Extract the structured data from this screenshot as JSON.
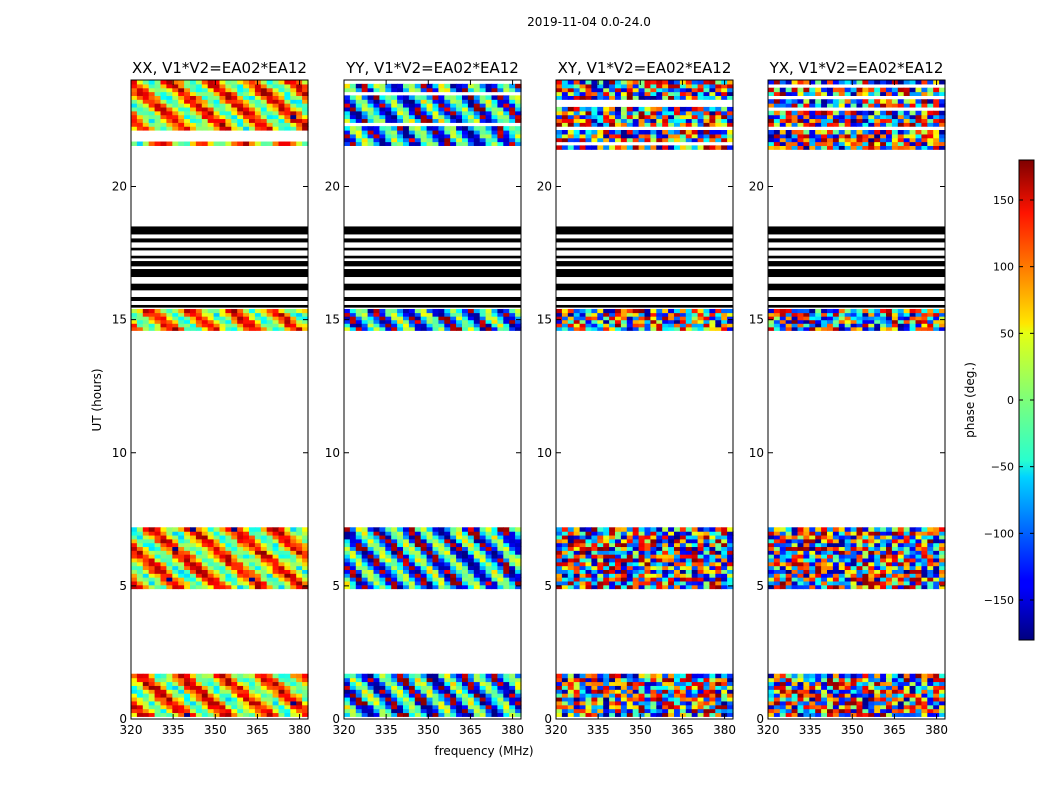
{
  "figure": {
    "suptitle": "2019-11-04 0.0-24.0",
    "ylabel": "UT (hours)",
    "xlabel": "frequency (MHz)"
  },
  "colorbar": {
    "label": "phase (deg.)",
    "range": [
      -180,
      180
    ],
    "ticks": [
      150,
      100,
      50,
      0,
      -50,
      -100,
      -150
    ],
    "tick_labels": [
      "150",
      "100",
      "50",
      "0",
      "−50",
      "−100",
      "−150"
    ],
    "colormap": "jet"
  },
  "chart_data": {
    "type": "heatmap",
    "x_range": [
      320,
      383
    ],
    "y_range": [
      0,
      24
    ],
    "x_ticks": [
      320,
      335,
      350,
      365,
      380
    ],
    "x_tick_labels": [
      "320",
      "335",
      "350",
      "365",
      "380"
    ],
    "y_ticks": [
      0,
      5,
      10,
      15,
      20
    ],
    "y_tick_labels": [
      "0",
      "5",
      "10",
      "15",
      "20"
    ],
    "data_blocks_ut": [
      [
        0.1,
        1.7
      ],
      [
        4.9,
        7.2
      ],
      [
        14.6,
        15.4
      ],
      [
        21.4,
        24.0
      ]
    ],
    "flagged_bands_ut": [
      [
        18.2,
        18.5
      ],
      [
        17.9,
        18.05
      ],
      [
        17.6,
        17.7
      ],
      [
        17.3,
        17.4
      ],
      [
        17.0,
        17.2
      ],
      [
        16.6,
        16.9
      ],
      [
        16.1,
        16.35
      ],
      [
        15.7,
        15.85
      ],
      [
        15.45,
        15.55
      ]
    ],
    "panels": [
      {
        "title": "XX, V1*V2=EA02*EA12",
        "mean_phase_deg": 60,
        "spread": 0.5,
        "noise": 0.2
      },
      {
        "title": "YY, V1*V2=EA02*EA12",
        "mean_phase_deg": -80,
        "spread": 0.6,
        "noise": 0.2
      },
      {
        "title": "XY, V1*V2=EA02*EA12",
        "mean_phase_deg": 0,
        "spread": 1.0,
        "noise": 0.7
      },
      {
        "title": "YX, V1*V2=EA02*EA12",
        "mean_phase_deg": 0,
        "spread": 1.0,
        "noise": 0.6
      }
    ]
  }
}
